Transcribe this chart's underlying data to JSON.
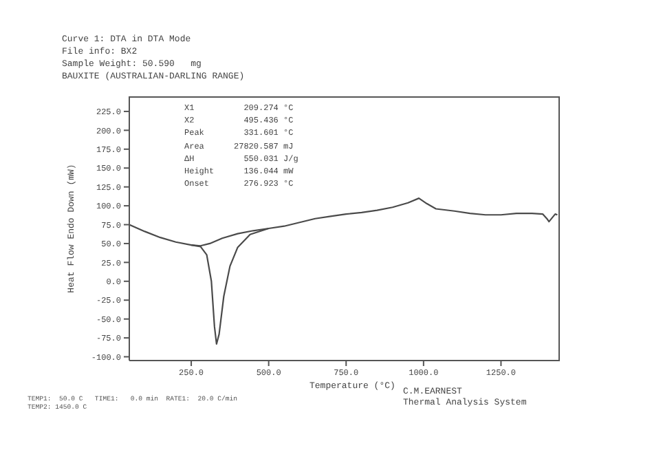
{
  "chart_data": {
    "type": "line",
    "title": "Curve 1: DTA in DTA Mode",
    "subtitle": "File info: BX2\nSample Weight: 50.590   mg\nBAUXITE (AUSTRALIAN-DARLING RANGE)",
    "xlabel": "Temperature (°C)",
    "ylabel": "Heat Flow Endo Down (mW)",
    "series": [
      {
        "color": "#4a4a4a",
        "x": [
          50,
          100,
          150,
          200,
          250,
          280,
          300,
          315,
          325,
          331.6,
          340,
          355,
          375,
          400,
          440,
          500,
          550,
          600,
          650,
          700,
          750,
          800,
          850,
          900,
          950,
          985,
          1010,
          1040,
          1100,
          1150,
          1200,
          1250,
          1300,
          1350,
          1385,
          1400,
          1405,
          1415,
          1425,
          1432
        ],
        "values": [
          75,
          66,
          58,
          52,
          48,
          46,
          35,
          0,
          -60,
          -83,
          -70,
          -20,
          20,
          45,
          62,
          70,
          73,
          78,
          83,
          86,
          89,
          91,
          94,
          98,
          104,
          110,
          103,
          96,
          93,
          90,
          88,
          88,
          90,
          90,
          89,
          82,
          79,
          84,
          89,
          88
        ]
      },
      {
        "color": "#4a4a4a",
        "x": [
          250,
          280,
          310,
          350,
          400,
          450,
          500
        ],
        "values": [
          48,
          47,
          50,
          57,
          63,
          67,
          70
        ]
      }
    ],
    "xlim": [
      50,
      1440
    ],
    "xticks": [
      {
        "value": 250,
        "label": "250.0"
      },
      {
        "value": 500,
        "label": "500.0"
      },
      {
        "value": 750,
        "label": "750.0"
      },
      {
        "value": 1000,
        "label": "1000.0"
      },
      {
        "value": 1250,
        "label": "1250.0"
      }
    ],
    "ylim": [
      -105,
      245
    ],
    "yticks": [
      {
        "value": -100,
        "label": "-100.0"
      },
      {
        "value": -75,
        "label": "-75.0"
      },
      {
        "value": -50,
        "label": "-50.0"
      },
      {
        "value": -25,
        "label": "-25.0"
      },
      {
        "value": 0,
        "label": "0.0"
      },
      {
        "value": 25,
        "label": "25.0"
      },
      {
        "value": 50,
        "label": "50.0"
      },
      {
        "value": 75,
        "label": "75.0"
      },
      {
        "value": 100,
        "label": "100.0"
      },
      {
        "value": 125,
        "label": "125.0"
      },
      {
        "value": 150,
        "label": "150.0"
      },
      {
        "value": 175,
        "label": "175.0"
      },
      {
        "value": 200,
        "label": "200.0"
      },
      {
        "value": 225,
        "label": "225.0"
      }
    ],
    "marker": "none",
    "line_style": "solid",
    "annotations": [
      "X1          209.274 °C",
      "X2          495.436 °C",
      "Peak        331.601 °C",
      "Area      27820.587 mJ",
      "ΔH          550.031 J/g",
      "Height      136.044 mW",
      "Onset       276.923 °C",
      "TEMP1:  50.0 C   TIME1:   0.0 min  RATE1:  20.0 C/min",
      "TEMP2: 1450.0 C",
      "C.M.EARNEST",
      "Thermal Analysis System"
    ]
  }
}
